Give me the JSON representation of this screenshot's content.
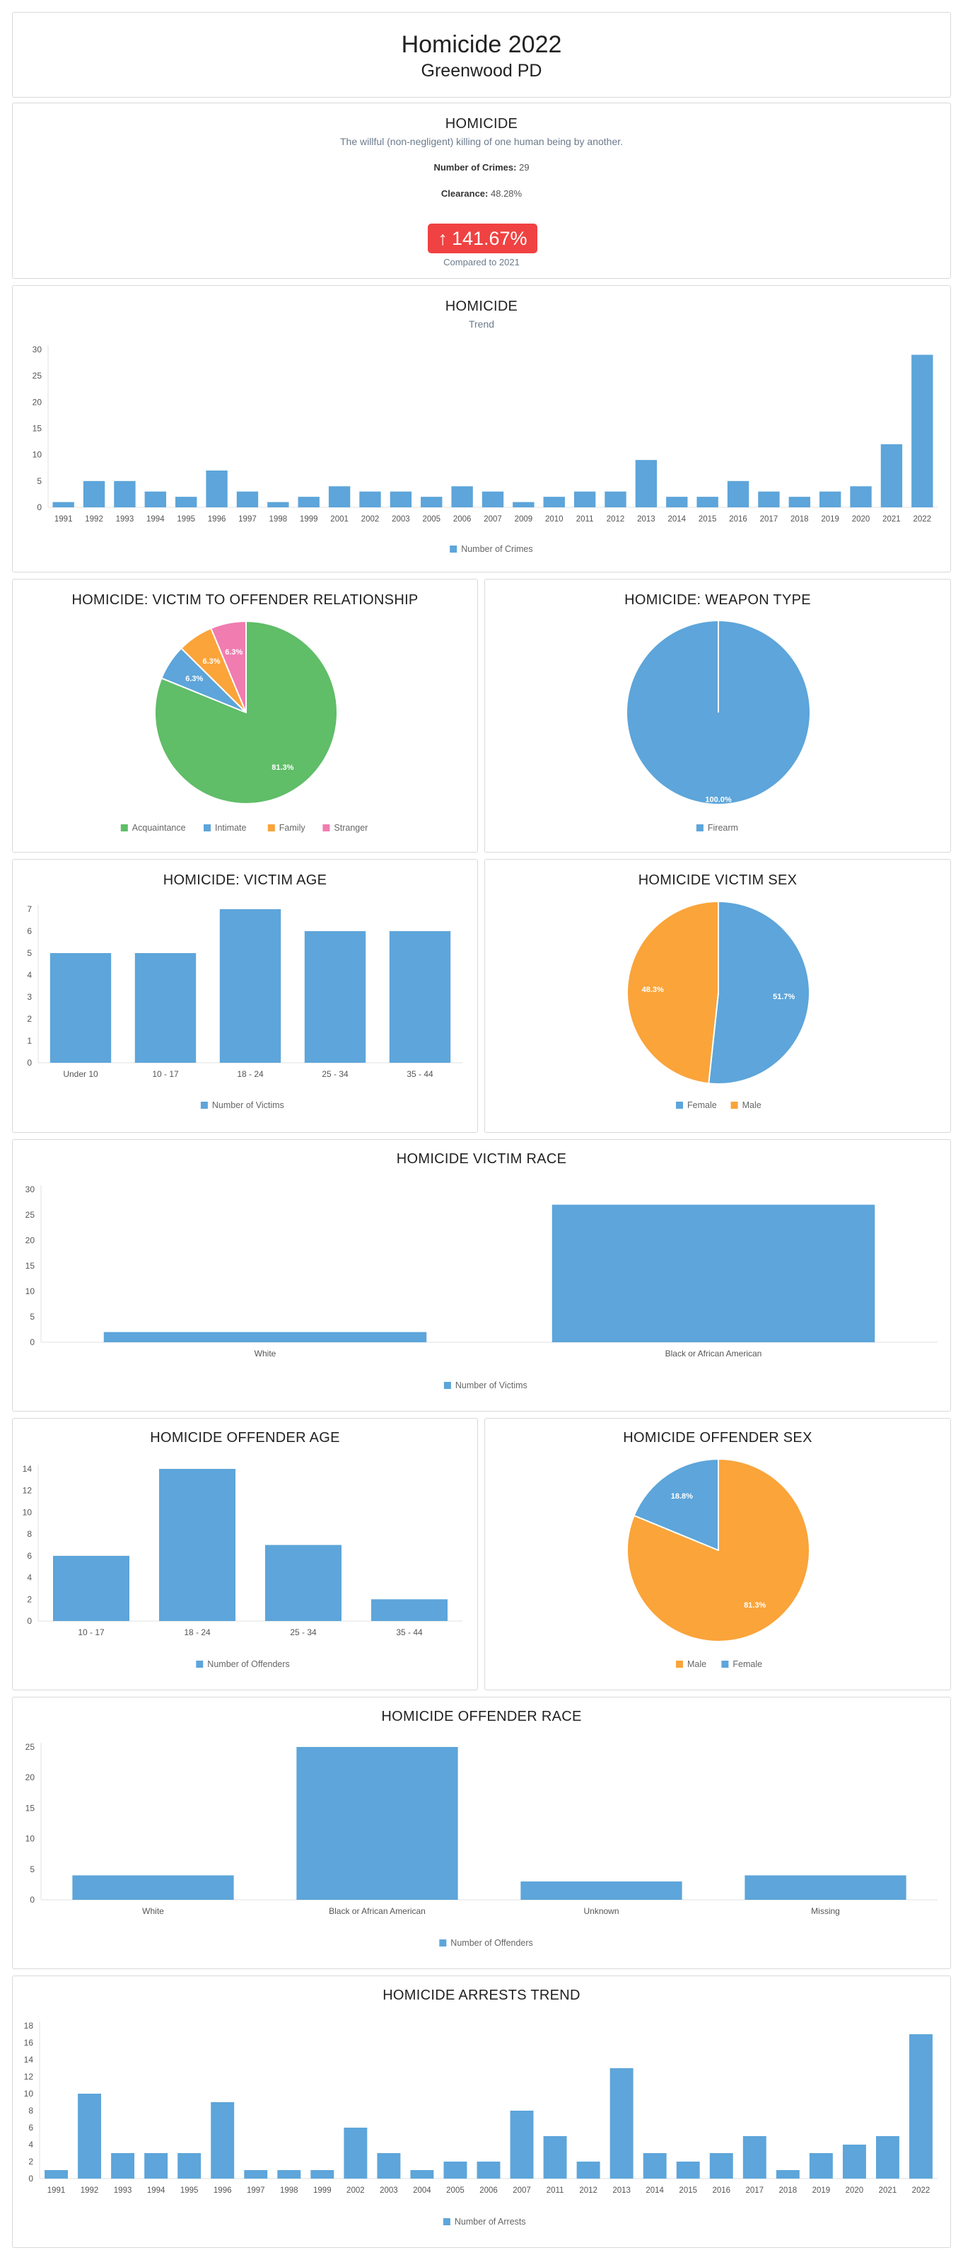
{
  "header": {
    "title": "Homicide 2022",
    "subtitle": "Greenwood PD"
  },
  "summary": {
    "title": "HOMICIDE",
    "description": "The willful (non-negligent) killing of one human being by another.",
    "crimes_label": "Number of Crimes:",
    "crimes_value": "29",
    "clearance_label": "Clearance:",
    "clearance_value": "48.28%",
    "change_value": "141.67%",
    "change_arrow": "↑",
    "compare_text": "Compared to 2021",
    "colors": {
      "badge": "#f04242"
    }
  },
  "colors": {
    "blue": "#5da5da",
    "green": "#60bd68",
    "orange": "#faa43a",
    "pink": "#f17cb0"
  },
  "chart_data": [
    {
      "id": "trend",
      "type": "bar",
      "title": "HOMICIDE",
      "subtitle": "Trend",
      "categories": [
        "1991",
        "1992",
        "1993",
        "1994",
        "1995",
        "1996",
        "1997",
        "1998",
        "1999",
        "2001",
        "2002",
        "2003",
        "2005",
        "2006",
        "2007",
        "2009",
        "2010",
        "2011",
        "2012",
        "2013",
        "2014",
        "2015",
        "2016",
        "2017",
        "2018",
        "2019",
        "2020",
        "2021",
        "2022"
      ],
      "series": [
        {
          "name": "Number of Crimes",
          "values": [
            1,
            5,
            5,
            3,
            2,
            7,
            3,
            1,
            2,
            4,
            3,
            3,
            2,
            4,
            3,
            1,
            2,
            3,
            3,
            9,
            2,
            2,
            5,
            3,
            2,
            3,
            4,
            12,
            29
          ]
        }
      ],
      "yticks": [
        0,
        5,
        10,
        15,
        20,
        25,
        30
      ],
      "ylim": [
        0,
        30
      ],
      "legend": [
        "Number of Crimes"
      ]
    },
    {
      "id": "relationship",
      "type": "pie",
      "title": "HOMICIDE: VICTIM TO OFFENDER RELATIONSHIP",
      "labels": [
        "Acquaintance",
        "Intimate",
        "Family",
        "Stranger"
      ],
      "values": [
        81.3,
        6.3,
        6.3,
        6.3
      ],
      "value_labels": [
        "81.3%",
        "6.3%",
        "6.3%",
        "6.3%"
      ],
      "colors": [
        "#60bd68",
        "#5da5da",
        "#faa43a",
        "#f17cb0"
      ],
      "legend": [
        "Acquaintance",
        "Intimate",
        "Family",
        "Stranger"
      ]
    },
    {
      "id": "weapon",
      "type": "pie",
      "title": "HOMICIDE: WEAPON TYPE",
      "labels": [
        "Firearm"
      ],
      "values": [
        100.0
      ],
      "value_labels": [
        "100.0%"
      ],
      "colors": [
        "#5da5da"
      ],
      "legend": [
        "Firearm"
      ]
    },
    {
      "id": "victim_age",
      "type": "bar",
      "title": "HOMICIDE: VICTIM AGE",
      "categories": [
        "Under 10",
        "10 - 17",
        "18 - 24",
        "25 - 34",
        "35 - 44"
      ],
      "series": [
        {
          "name": "Number of Victims",
          "values": [
            5,
            5,
            7,
            6,
            6
          ]
        }
      ],
      "yticks": [
        0,
        1,
        2,
        3,
        4,
        5,
        6,
        7
      ],
      "ylim": [
        0,
        7
      ],
      "legend": [
        "Number of Victims"
      ]
    },
    {
      "id": "victim_sex",
      "type": "pie",
      "title": "HOMICIDE VICTIM SEX",
      "labels": [
        "Female",
        "Male"
      ],
      "values": [
        51.7,
        48.3
      ],
      "value_labels": [
        "51.7%",
        "48.3%"
      ],
      "colors": [
        "#5da5da",
        "#faa43a"
      ],
      "legend": [
        "Female",
        "Male"
      ]
    },
    {
      "id": "victim_race",
      "type": "bar",
      "title": "HOMICIDE VICTIM RACE",
      "categories": [
        "White",
        "Black or African American"
      ],
      "series": [
        {
          "name": "Number of Victims",
          "values": [
            2,
            27
          ]
        }
      ],
      "yticks": [
        0,
        5,
        10,
        15,
        20,
        25,
        30
      ],
      "ylim": [
        0,
        30
      ],
      "legend": [
        "Number of Victims"
      ]
    },
    {
      "id": "offender_age",
      "type": "bar",
      "title": "HOMICIDE OFFENDER AGE",
      "categories": [
        "10 - 17",
        "18 - 24",
        "25 - 34",
        "35 - 44"
      ],
      "series": [
        {
          "name": "Number of Offenders",
          "values": [
            6,
            14,
            7,
            2
          ]
        }
      ],
      "yticks": [
        0,
        2,
        4,
        6,
        8,
        10,
        12,
        14
      ],
      "ylim": [
        0,
        14
      ],
      "legend": [
        "Number of Offenders"
      ]
    },
    {
      "id": "offender_sex",
      "type": "pie",
      "title": "HOMICIDE OFFENDER SEX",
      "labels": [
        "Male",
        "Female"
      ],
      "values": [
        81.3,
        18.8
      ],
      "value_labels": [
        "81.3%",
        "18.8%"
      ],
      "colors": [
        "#faa43a",
        "#5da5da"
      ],
      "legend": [
        "Male",
        "Female"
      ]
    },
    {
      "id": "offender_race",
      "type": "bar",
      "title": "HOMICIDE OFFENDER RACE",
      "categories": [
        "White",
        "Black or African American",
        "Unknown",
        "Missing"
      ],
      "series": [
        {
          "name": "Number of Offenders",
          "values": [
            4,
            25,
            3,
            4
          ]
        }
      ],
      "yticks": [
        0,
        5,
        10,
        15,
        20,
        25
      ],
      "ylim": [
        0,
        25
      ],
      "legend": [
        "Number of Offenders"
      ]
    },
    {
      "id": "arrests_trend",
      "type": "bar",
      "title": "HOMICIDE ARRESTS TREND",
      "categories": [
        "1991",
        "1992",
        "1993",
        "1994",
        "1995",
        "1996",
        "1997",
        "1998",
        "1999",
        "2002",
        "2003",
        "2004",
        "2005",
        "2006",
        "2007",
        "2011",
        "2012",
        "2013",
        "2014",
        "2015",
        "2016",
        "2017",
        "2018",
        "2019",
        "2020",
        "2021",
        "2022"
      ],
      "series": [
        {
          "name": "Number of Arrests",
          "values": [
            1,
            10,
            3,
            3,
            3,
            9,
            1,
            1,
            1,
            6,
            3,
            1,
            2,
            2,
            8,
            5,
            2,
            13,
            3,
            2,
            3,
            5,
            1,
            3,
            4,
            5,
            17
          ]
        }
      ],
      "yticks": [
        0,
        2,
        4,
        6,
        8,
        10,
        12,
        14,
        16,
        18
      ],
      "ylim": [
        0,
        18
      ],
      "legend": [
        "Number of Arrests"
      ]
    }
  ]
}
